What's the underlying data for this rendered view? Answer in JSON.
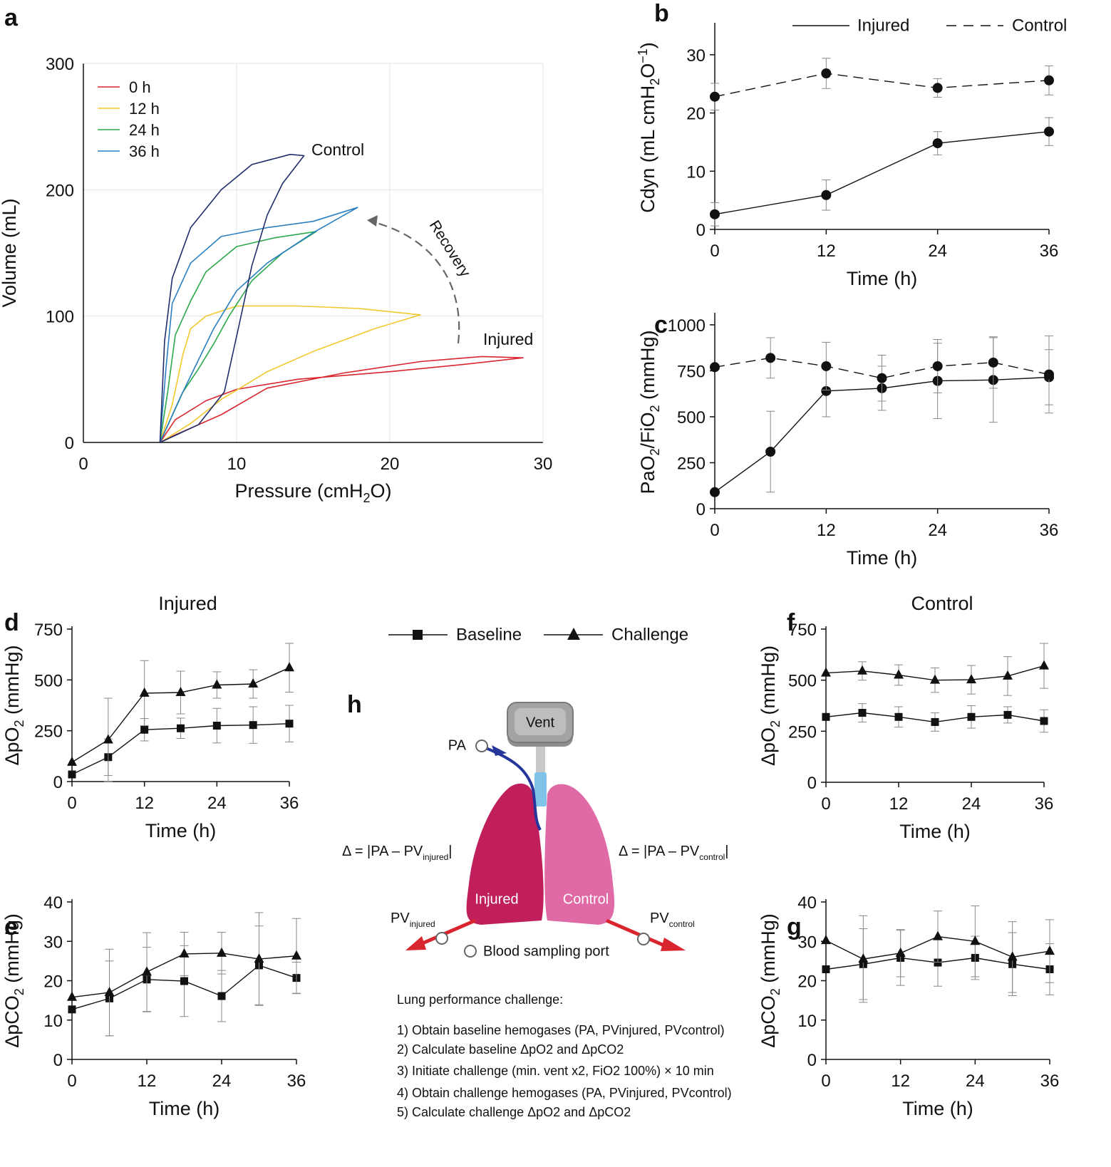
{
  "legend_top": {
    "injured": "Injured",
    "control": "Control"
  },
  "legend_mid": {
    "baseline": "Baseline",
    "challenge": "Challenge"
  },
  "chart_data": [
    {
      "panel": "a",
      "type": "line",
      "xlabel": "Pressure (cmH2O)",
      "ylabel": "Volume (mL)",
      "xlim": [
        0,
        30
      ],
      "ylim": [
        0,
        300
      ],
      "xticks": [
        0,
        10,
        20,
        30
      ],
      "yticks": [
        0,
        100,
        200,
        300
      ],
      "legend": [
        "0  h",
        "12 h",
        "24 h",
        "36 h"
      ],
      "annotations": {
        "control": "Control",
        "injured": "Injured",
        "recovery": "Recovery"
      },
      "series": [
        {
          "name": "0  h",
          "color": "#d9262e",
          "loop": [
            [
              5,
              0
            ],
            [
              6,
              18
            ],
            [
              8,
              33
            ],
            [
              10,
              42
            ],
            [
              14,
              50
            ],
            [
              20,
              56
            ],
            [
              25,
              62
            ],
            [
              28.7,
              67
            ],
            [
              26,
              68
            ],
            [
              22,
              64
            ],
            [
              17,
              55
            ],
            [
              12,
              43
            ],
            [
              9,
              22
            ],
            [
              6,
              6
            ],
            [
              5,
              0
            ]
          ]
        },
        {
          "name": "12 h",
          "color": "#f2c82f",
          "loop": [
            [
              5,
              0
            ],
            [
              5.8,
              30
            ],
            [
              6.5,
              70
            ],
            [
              7,
              90
            ],
            [
              8,
              100
            ],
            [
              10,
              108
            ],
            [
              14,
              108
            ],
            [
              18,
              106
            ],
            [
              22,
              101
            ],
            [
              19,
              90
            ],
            [
              15,
              72
            ],
            [
              12,
              56
            ],
            [
              9,
              34
            ],
            [
              7,
              15
            ],
            [
              5,
              0
            ]
          ]
        },
        {
          "name": "24 h",
          "color": "#2aa84a",
          "loop": [
            [
              5,
              0
            ],
            [
              5.5,
              40
            ],
            [
              6,
              85
            ],
            [
              7,
              112
            ],
            [
              8,
              135
            ],
            [
              10,
              155
            ],
            [
              12.5,
              162
            ],
            [
              15.2,
              167
            ],
            [
              13,
              150
            ],
            [
              11,
              128
            ],
            [
              9.5,
              100
            ],
            [
              8.5,
              78
            ],
            [
              7.5,
              58
            ],
            [
              6.5,
              40
            ],
            [
              5,
              0
            ]
          ]
        },
        {
          "name": "36 h",
          "color": "#2a7fc1",
          "loop": [
            [
              5,
              0
            ],
            [
              5.4,
              60
            ],
            [
              5.8,
              110
            ],
            [
              7,
              142
            ],
            [
              9,
              163
            ],
            [
              12,
              170
            ],
            [
              15,
              175
            ],
            [
              17.9,
              186
            ],
            [
              15,
              166
            ],
            [
              12,
              142
            ],
            [
              10,
              120
            ],
            [
              8.5,
              90
            ],
            [
              7.3,
              60
            ],
            [
              6.3,
              35
            ],
            [
              5,
              0
            ]
          ]
        },
        {
          "name": "Control",
          "color": "#1f2d6b",
          "loop": [
            [
              5,
              0
            ],
            [
              5.3,
              80
            ],
            [
              5.8,
              130
            ],
            [
              7,
              170
            ],
            [
              9,
              200
            ],
            [
              11,
              220
            ],
            [
              13.5,
              228
            ],
            [
              14.4,
              227
            ],
            [
              13,
              205
            ],
            [
              12,
              180
            ],
            [
              11,
              140
            ],
            [
              10.2,
              95
            ],
            [
              9.2,
              40
            ],
            [
              7.5,
              14
            ],
            [
              5,
              0
            ]
          ]
        }
      ]
    },
    {
      "panel": "b",
      "type": "line",
      "xlabel": "Time (h)",
      "ylabel": "Cdyn (mL cmH2O-1)",
      "xlim": [
        0,
        36
      ],
      "ylim": [
        0,
        35
      ],
      "xticks": [
        0,
        12,
        24,
        36
      ],
      "yticks": [
        0,
        10,
        20,
        30
      ],
      "series": [
        {
          "name": "Injured",
          "style": "solid",
          "x": [
            0,
            12,
            24,
            36
          ],
          "y": [
            2.6,
            5.9,
            14.8,
            16.8
          ],
          "err": [
            2.0,
            2.6,
            2.0,
            2.4
          ]
        },
        {
          "name": "Control",
          "style": "dashed",
          "x": [
            0,
            12,
            24,
            36
          ],
          "y": [
            22.8,
            26.8,
            24.3,
            25.6
          ],
          "err": [
            2.3,
            2.6,
            1.6,
            2.5
          ]
        }
      ]
    },
    {
      "panel": "c",
      "type": "line",
      "xlabel": "Time (h)",
      "ylabel": "PaO2/FiO2 (mmHg)",
      "xlim": [
        0,
        36
      ],
      "ylim": [
        0,
        1050
      ],
      "xticks": [
        0,
        12,
        24,
        36
      ],
      "yticks": [
        0,
        250,
        500,
        750,
        1000
      ],
      "series": [
        {
          "name": "Injured",
          "style": "solid",
          "x": [
            0,
            6,
            12,
            18,
            24,
            30,
            36
          ],
          "y": [
            90,
            310,
            640,
            655,
            695,
            700,
            715
          ],
          "err": [
            0,
            220,
            140,
            120,
            205,
            230,
            150
          ]
        },
        {
          "name": "Control",
          "style": "dashed",
          "x": [
            0,
            6,
            12,
            18,
            24,
            30,
            36
          ],
          "y": [
            770,
            820,
            775,
            710,
            775,
            795,
            730
          ],
          "err": [
            0,
            110,
            130,
            125,
            145,
            140,
            210
          ]
        }
      ]
    },
    {
      "panel": "d",
      "type": "line",
      "title": "Injured",
      "xlabel": "Time (h)",
      "ylabel": "ΔpO2 (mmHg)",
      "xlim": [
        0,
        36
      ],
      "ylim": [
        0,
        750
      ],
      "xticks": [
        0,
        12,
        24,
        36
      ],
      "yticks": [
        0,
        250,
        500,
        750
      ],
      "series": [
        {
          "name": "Baseline",
          "marker": "square",
          "x": [
            0,
            6,
            12,
            18,
            24,
            30,
            36
          ],
          "y": [
            35,
            120,
            255,
            262,
            275,
            278,
            285
          ],
          "err": [
            0,
            90,
            55,
            50,
            85,
            90,
            90
          ]
        },
        {
          "name": "Challenge",
          "marker": "triangle",
          "x": [
            0,
            6,
            12,
            18,
            24,
            30,
            36
          ],
          "y": [
            95,
            205,
            435,
            438,
            475,
            480,
            560
          ],
          "err": [
            0,
            205,
            160,
            105,
            65,
            70,
            120
          ]
        }
      ]
    },
    {
      "panel": "e",
      "type": "line",
      "xlabel": "Time (h)",
      "ylabel": "ΔpCO2 (mmHg)",
      "xlim": [
        0,
        36
      ],
      "ylim": [
        0,
        40
      ],
      "xticks": [
        0,
        12,
        24,
        36
      ],
      "yticks": [
        0,
        10,
        20,
        30,
        40
      ],
      "series": [
        {
          "name": "Baseline",
          "marker": "square",
          "x": [
            0,
            6,
            12,
            18,
            24,
            30,
            36
          ],
          "y": [
            12.7,
            15.5,
            20.3,
            19.9,
            16.1,
            23.9,
            20.7
          ],
          "err": [
            0,
            9.5,
            8.2,
            9.0,
            6.5,
            10.0,
            4.0
          ]
        },
        {
          "name": "Challenge",
          "marker": "triangle",
          "x": [
            0,
            6,
            12,
            18,
            24,
            30,
            36
          ],
          "y": [
            15.8,
            17.0,
            22.2,
            26.8,
            27.0,
            25.5,
            26.3
          ],
          "err": [
            0,
            11.0,
            10.0,
            5.5,
            5.3,
            11.8,
            9.5
          ]
        }
      ]
    },
    {
      "panel": "f",
      "type": "line",
      "title": "Control",
      "xlabel": "Time (h)",
      "ylabel": "ΔpO2 (mmHg)",
      "xlim": [
        0,
        36
      ],
      "ylim": [
        0,
        750
      ],
      "xticks": [
        0,
        12,
        24,
        36
      ],
      "yticks": [
        0,
        250,
        500,
        750
      ],
      "series": [
        {
          "name": "Baseline",
          "marker": "square",
          "x": [
            0,
            6,
            12,
            18,
            24,
            30,
            36
          ],
          "y": [
            320,
            340,
            320,
            295,
            320,
            330,
            300
          ],
          "err": [
            0,
            45,
            50,
            45,
            55,
            40,
            55
          ]
        },
        {
          "name": "Challenge",
          "marker": "triangle",
          "x": [
            0,
            6,
            12,
            18,
            24,
            30,
            36
          ],
          "y": [
            535,
            545,
            525,
            500,
            502,
            520,
            570
          ],
          "err": [
            0,
            45,
            50,
            60,
            70,
            95,
            110
          ]
        }
      ]
    },
    {
      "panel": "g",
      "type": "line",
      "xlabel": "Time (h)",
      "ylabel": "ΔpCO2 (mmHg)",
      "xlim": [
        0,
        36
      ],
      "ylim": [
        0,
        40
      ],
      "xticks": [
        0,
        12,
        24,
        36
      ],
      "yticks": [
        0,
        10,
        20,
        30,
        40
      ],
      "series": [
        {
          "name": "Baseline",
          "marker": "square",
          "x": [
            0,
            6,
            12,
            18,
            24,
            30,
            36
          ],
          "y": [
            22.9,
            24.2,
            25.8,
            24.6,
            25.8,
            24.2,
            22.9
          ],
          "err": [
            0,
            9.0,
            7.0,
            6.0,
            5.5,
            8.0,
            6.5
          ]
        },
        {
          "name": "Challenge",
          "marker": "triangle",
          "x": [
            0,
            6,
            12,
            18,
            24,
            30,
            36
          ],
          "y": [
            30.2,
            25.5,
            27.0,
            31.2,
            30.0,
            26.0,
            27.5
          ],
          "err": [
            0,
            11.0,
            6.0,
            6.5,
            9.0,
            9.0,
            8.0
          ]
        }
      ]
    }
  ],
  "diagram": {
    "panel": "h",
    "vent": "Vent",
    "pa": "PA",
    "injured": "Injured",
    "control": "Control",
    "pv_injured": {
      "main": "PV",
      "sub": "injured"
    },
    "pv_control": {
      "main": "PV",
      "sub": "control"
    },
    "delta_injured": {
      "pre": "Δ = |PA – PV",
      "sub": "injured",
      "post": "|"
    },
    "delta_control": {
      "pre": "Δ = |PA – PV",
      "sub": "control",
      "post": "|"
    },
    "port_label": "Blood sampling port",
    "protocol_title": "Lung performance challenge:",
    "protocol_steps": [
      "1) Obtain baseline hemogases (PA, PVinjured, PVcontrol)",
      "2) Calculate baseline ΔpO2 and ΔpCO2",
      "3) Initiate challenge (min. vent x2, FiO2 100%) × 10 min",
      "4) Obtain challenge hemogases (PA, PVinjured, PVcontrol)",
      "5) Calculate challenge ΔpO2 and ΔpCO2"
    ]
  }
}
